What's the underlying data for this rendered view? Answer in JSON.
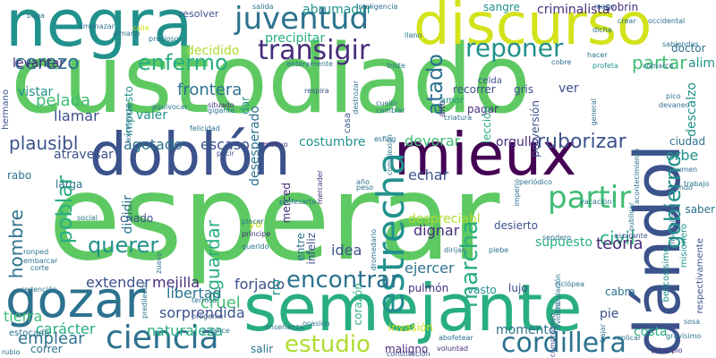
{
  "palette": {
    "yellow": "#d3e21b",
    "lime": "#addc30",
    "green": "#5ec962",
    "mint": "#3fbc73",
    "teal_green": "#28ae80",
    "teal": "#21918c",
    "teal_blue": "#2c728e",
    "blue": "#3b528b",
    "indigo": "#472d7b",
    "purple": "#440154",
    "background": "#ffffff"
  },
  "words": {
    "custodiado": "custodiado",
    "esperar": "esperar",
    "doblon": "doblón",
    "mieux": "mieux",
    "semejante": "semejante",
    "negra": "negra",
    "discurso": "discurso",
    "dandole": "dándol",
    "gozar": "gozar",
    "ciencia": "ciencia",
    "estrecha": "estrecha",
    "juventud": "juventud",
    "transigir": "transigir",
    "reponer": "reponer",
    "enfermo": "enfermo",
    "cerezo": "cerezo",
    "partir": "partir",
    "gobierno": "gobierno",
    "cordillera": "cordillera",
    "encontrar": "encontrar",
    "querer": "querer",
    "estudio": "estudio",
    "marcha": "marcha",
    "poblar": "poblar",
    "plausibl": "plausibl",
    "hombre": "hombre",
    "ruborizar": "ruborizar",
    "atado": "atado",
    "partar": "partar",
    "civil": "civil",
    "teoria": "teoría",
    "aguardar": "aguardar",
    "extender": "extender",
    "emplear": "emplear",
    "cruel": "cruel",
    "mejilla": "mejilla",
    "forjado": "forjado",
    "libertad": "libertad",
    "sorprendida": "sorprendida",
    "naturaleza": "naturaleza",
    "frontera": "frontera",
    "pelada": "pelada",
    "llamar": "llamar",
    "agotado": "agotado",
    "escaso": "escaso",
    "devorar": "devorar",
    "echar": "echar",
    "dignar": "dignar",
    "idea": "idea",
    "ejercer": "ejercer",
    "costumbre": "costumbre",
    "valer": "valer",
    "levantar": "levantar",
    "vistar": "vistar",
    "precipitar": "precipitar",
    "decidido": "decidido",
    "abrumador": "abrumador",
    "criminalista": "criminalista",
    "sangre": "sangre",
    "resolver": "resolver",
    "recorrer": "recorrer",
    "ver": "ver",
    "gris": "gris",
    "pagar": "pagar",
    "alim": "alim",
    "doctor": "doctor",
    "saber": "saber",
    "orbe": "orbe",
    "ciudad": "ciudad",
    "orgullo": "orgullo",
    "leccion": "lección",
    "despreciabl": "despreciabl",
    "desierto": "desierto",
    "rio": "río",
    "dar": "dar",
    "impuesto": "impuesto",
    "atravesar": "atravesar",
    "larga": "larga",
    "tierra": "tierra",
    "caracter": "carácter",
    "correr": "correr",
    "pie": "pie",
    "momento": "momento",
    "vasto": "vasto",
    "lujo": "lujo",
    "cabra": "cabra",
    "pulmon": "pulmón",
    "salir": "salir",
    "maligno": "maligno",
    "costa": "costa",
    "invasion": "invasión",
    "corazon": "corazón",
    "desesperado": "desesperado",
    "merced": "merced",
    "sobrin": "sobrin",
    "hermano": "hermano",
    "descalzo": "descalzo",
    "perversion": "perversión",
    "rabo": "rabo",
    "estocada": "estocada",
    "criado": "criado",
    "dividir": "dividir",
    "yo": "yo",
    "entre": "entre",
    "infeliz": "infeliz",
    "aspirante": "aspirante",
    "respectivamente": "respectivamente",
    "mision": "misionero",
    "belicosisimo": "belicosísimo",
    "supuesto": "supuesto",
    "celda": "celda",
    "alto": "alto",
    "casa": "casa",
    "crear": "crear",
    "hacer": "hacer",
    "cobre": "cobre",
    "triste": "triste",
    "profeta": "profeta",
    "respira": "respira",
    "amor": "amor",
    "placer": "placer",
    "principe": "príncipe",
    "querido": "querido",
    "mercader": "mercader",
    "precioso": "precioso",
    "gigante": "gigante",
    "felicidad": "felicidad",
    "situado": "situado",
    "motivo": "motivo",
    "pacir": "pacir",
    "abofetear": "abofetear",
    "voluntad": "voluntad",
    "constitucion": "constitución",
    "compromiso": "compromiso",
    "replicar": "replicar",
    "gravisimo": "gravísimo",
    "principio": "principio",
    "sosa": "sosa",
    "bajar": "bajar",
    "alcance": "alcance",
    "ocasion": "ocasión",
    "rubio": "rubio",
    "corte": "corte",
    "embarcar": "embarcar",
    "redencion": "redención",
    "ronped": "ronped",
    "social": "social",
    "predilecto": "predilecto",
    "zuavo": "zuavo",
    "progenie": "progenie",
    "terrosa": "terrosa",
    "ensenanza": "enseñanza",
    "dirijas": "dirijas",
    "plebe": "plebe",
    "tribulacion": "tribulación",
    "ciclopea": "ciclópea",
    "dividido": "dividido",
    "publicar": "publicar",
    "vacacion": "vacación",
    "periodico": "periódico",
    "mundo": "mundo",
    "resumen": "resumen",
    "acontecimiento": "acontecimiento",
    "imperio": "imperio",
    "trabajo": "trabajo",
    "sabiendas": "sabiendas",
    "occidental": "occidental",
    "comarca": "comarca",
    "pico": "pico",
    "devaneo": "devaneo",
    "general": "general",
    "criatura": "criatura",
    "esfing": "esfing",
    "cuello": "cuello",
    "cambiar": "cambiar",
    "llano": "llano",
    "dicha": "dicha",
    "mano": "mano",
    "inteligencia": "inteligencia",
    "salida": "salida",
    "boga": "boga",
    "amenazar": "amenazar",
    "almario": "almario",
    "calle": "calle",
    "excelencia": "excelencia",
    "aquivocar": "aquivocar",
    "destrozar": "destrozar",
    "enteramente": "enteramente",
    "dromedario": "dromedario",
    "complexion": "complexión",
    "ano": "año",
    "peso": "peso",
    "profesarte": "profesarte",
    "correr2": "correr",
    "nacimiento": "nacimiento",
    "sendero": "sendero"
  }
}
